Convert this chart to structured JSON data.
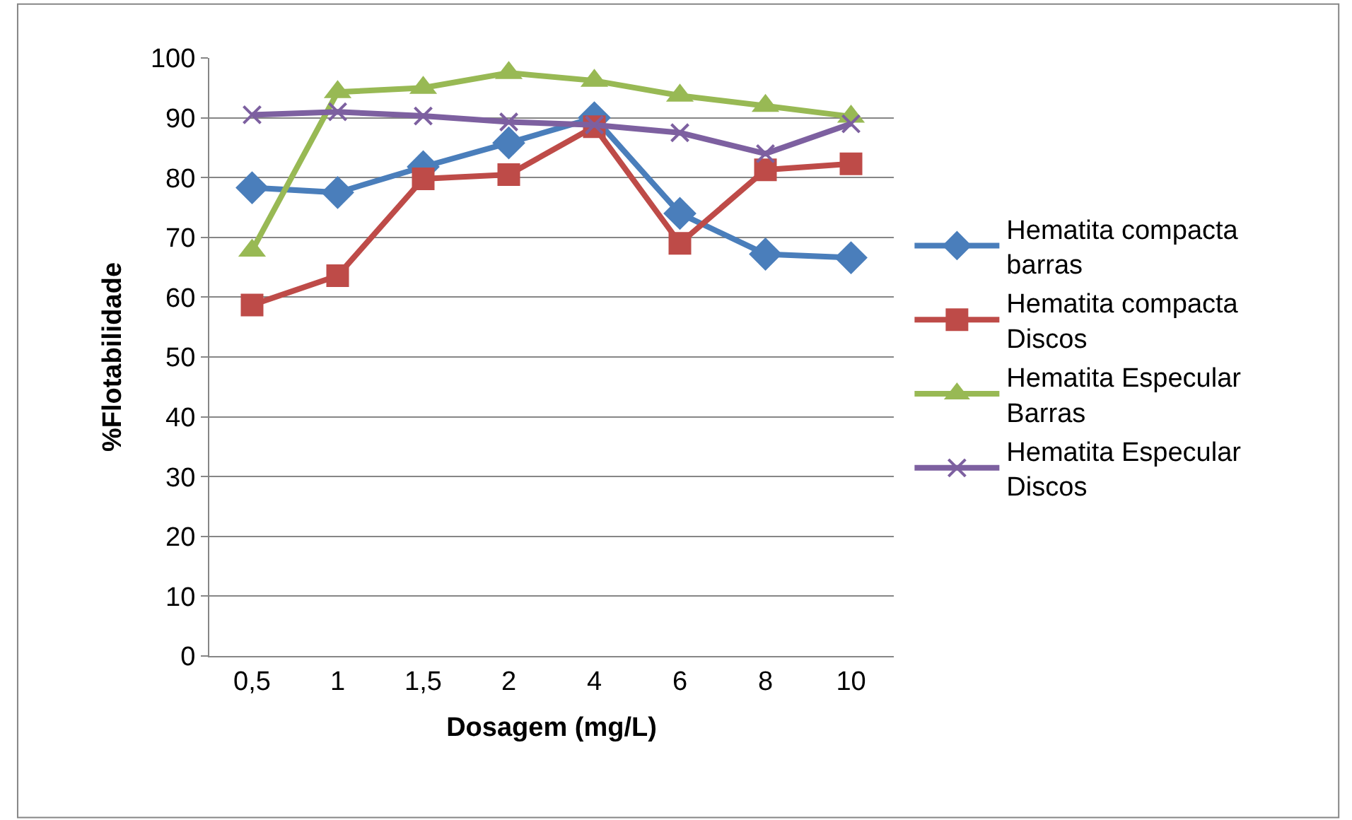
{
  "chart_data": {
    "type": "line",
    "xlabel": "Dosagem (mg/L)",
    "ylabel": "%Flotabilidade",
    "categories": [
      "0,5",
      "1",
      "1,5",
      "2",
      "4",
      "6",
      "8",
      "10"
    ],
    "series": [
      {
        "name": "Hematita compacta barras",
        "color": "#4a7ebb",
        "marker": "diamond",
        "values": [
          78.3,
          77.5,
          81.8,
          85.8,
          90,
          74,
          67.2,
          66.6
        ]
      },
      {
        "name": "Hematita compacta Discos",
        "color": "#be4b48",
        "marker": "square",
        "values": [
          58.7,
          63.6,
          79.8,
          80.5,
          88.5,
          69,
          81.3,
          82.3
        ]
      },
      {
        "name": "Hematita Especular Barras",
        "color": "#98b954",
        "marker": "triangle",
        "values": [
          67.8,
          94.3,
          95,
          97.5,
          96.2,
          93.7,
          92,
          90.2
        ]
      },
      {
        "name": "Hematita Especular Discos",
        "color": "#7d60a0",
        "marker": "cross",
        "values": [
          90.5,
          91,
          90.3,
          89.3,
          88.8,
          87.5,
          84,
          89
        ]
      }
    ],
    "ylim": [
      0,
      100
    ],
    "yticks": [
      0,
      10,
      20,
      30,
      40,
      50,
      60,
      70,
      80,
      90,
      100
    ],
    "grid": "y",
    "legend": "right",
    "line_style": "solid"
  }
}
